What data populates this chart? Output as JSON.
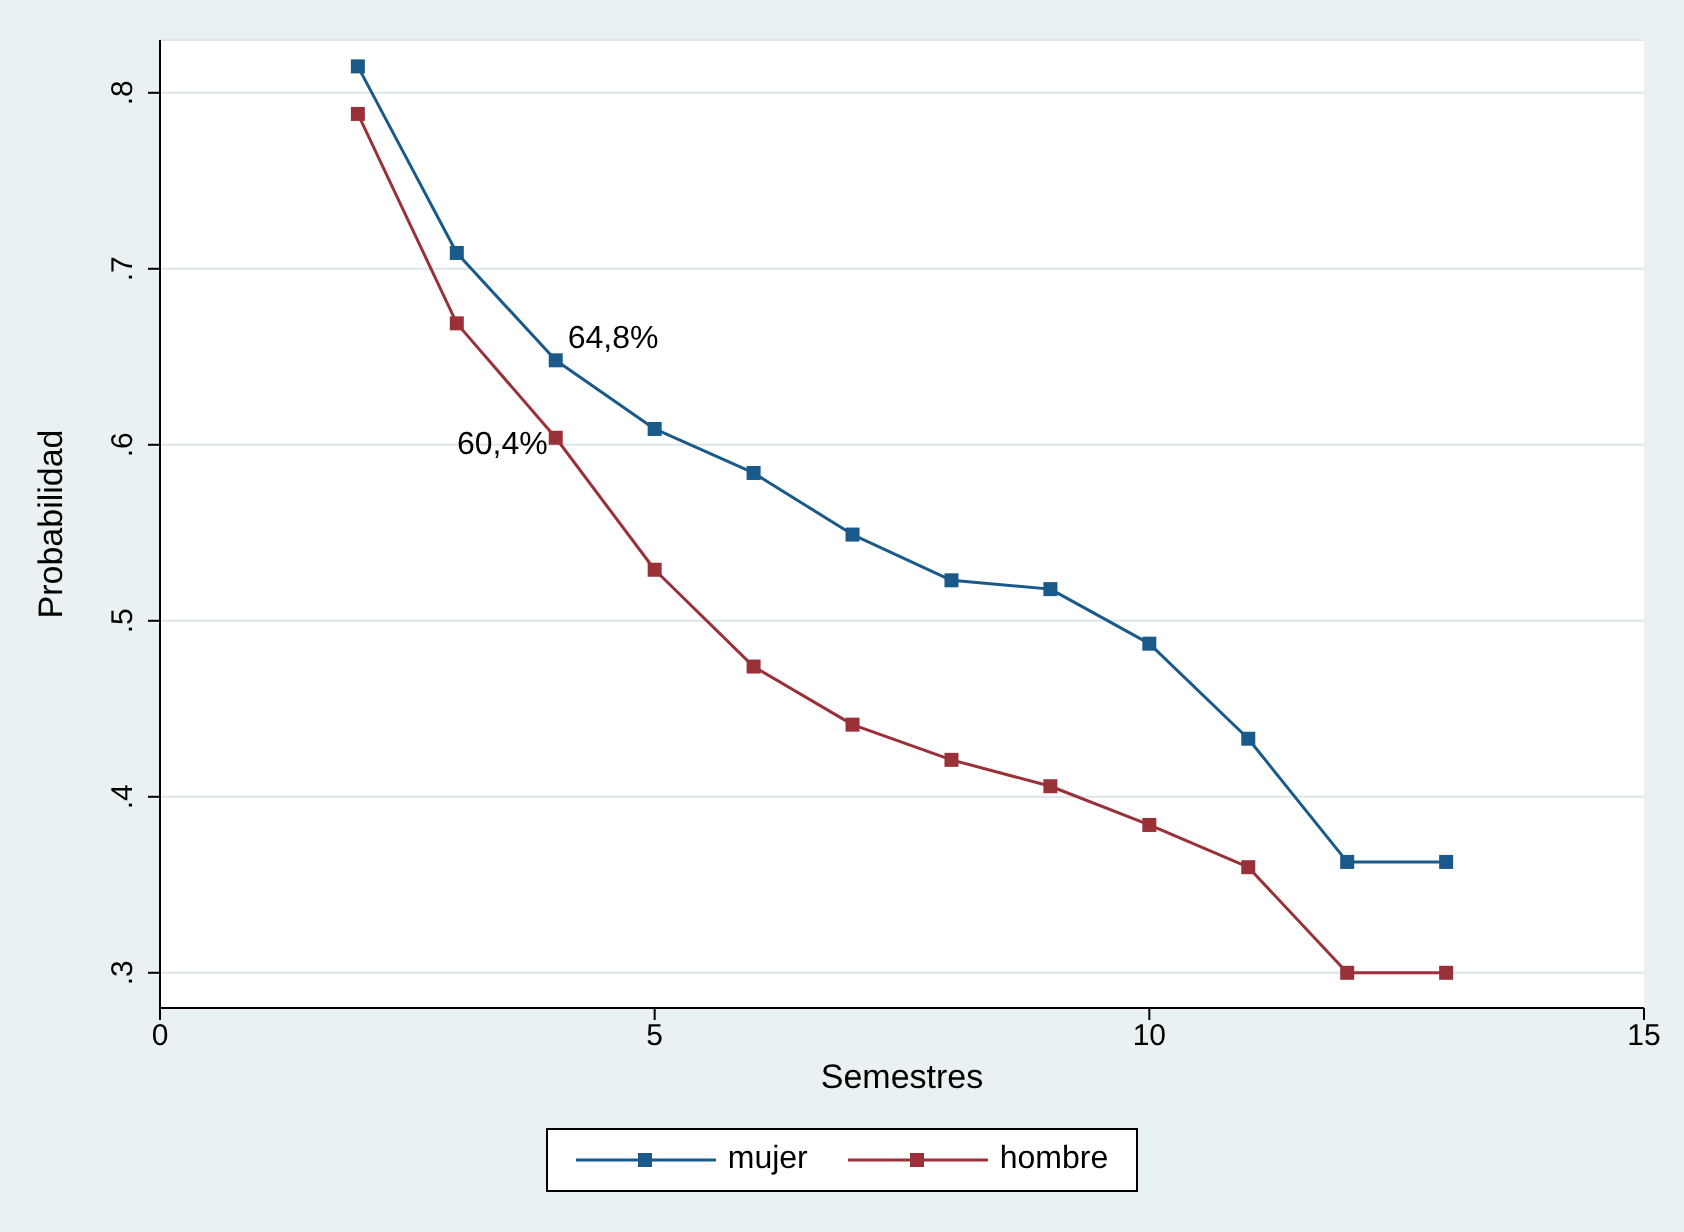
{
  "chart_data": {
    "type": "line",
    "xlabel": "Semestres",
    "ylabel": "Probabilidad",
    "x": [
      2,
      3,
      4,
      5,
      6,
      7,
      8,
      9,
      10,
      11,
      12,
      13
    ],
    "series": [
      {
        "name": "mujer",
        "color": "#1a5a8a",
        "values": [
          0.815,
          0.709,
          0.648,
          0.609,
          0.584,
          0.549,
          0.523,
          0.518,
          0.487,
          0.433,
          0.363,
          0.363
        ]
      },
      {
        "name": "hombre",
        "color": "#9a3038",
        "values": [
          0.788,
          0.669,
          0.604,
          0.529,
          0.474,
          0.441,
          0.421,
          0.406,
          0.384,
          0.36,
          0.3,
          0.3
        ]
      }
    ],
    "xlim": [
      0,
      15
    ],
    "xticks": [
      0,
      5,
      10,
      15
    ],
    "ylim": [
      0.28,
      0.83
    ],
    "yticks": [
      {
        "value": 0.3,
        "label": ".3"
      },
      {
        "value": 0.4,
        "label": ".4"
      },
      {
        "value": 0.5,
        "label": ".5"
      },
      {
        "value": 0.6,
        "label": ".6"
      },
      {
        "value": 0.7,
        "label": ".7"
      },
      {
        "value": 0.8,
        "label": ".8"
      }
    ],
    "annotations": [
      {
        "text": "64,8%",
        "x": 4,
        "y": 0.648
      },
      {
        "text": "60,4%",
        "x": 4,
        "y": 0.604
      }
    ],
    "grid": "y",
    "legend": "bottom",
    "marker": "square",
    "line_style": "solid"
  }
}
